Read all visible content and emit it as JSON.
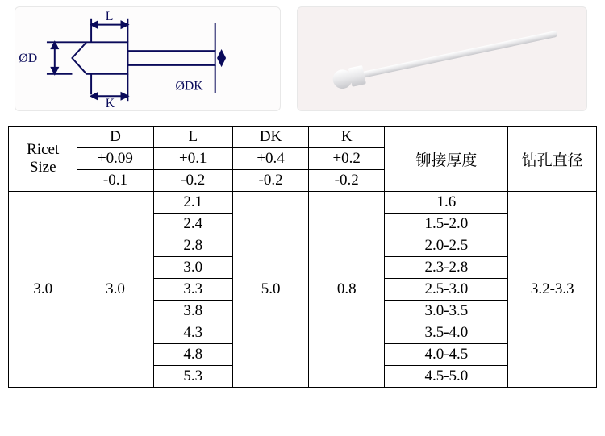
{
  "diagram": {
    "labels": {
      "L": "L",
      "D": "ØD",
      "DK": "ØDK",
      "K": "K"
    },
    "stroke": "#0a0a5a",
    "stroke_width": 2,
    "background": "#fdfcfc"
  },
  "photo": {
    "background": "#f6f1f1",
    "rivet_body": "#e8e8ea",
    "rivet_highlight": "#ffffff",
    "rivet_shadow": "#c8c8cc"
  },
  "table": {
    "header": {
      "size": "Ricet Size",
      "D": "D",
      "D_tol_hi": "+0.09",
      "D_tol_lo": "-0.1",
      "L": "L",
      "L_tol_hi": "+0.1",
      "L_tol_lo": "-0.2",
      "DK": "DK",
      "DK_tol_hi": "+0.4",
      "DK_tol_lo": "-0.2",
      "K": "K",
      "K_tol_hi": "+0.2",
      "K_tol_lo": "-0.2",
      "grip": "铆接厚度",
      "hole": "钻孔直径"
    },
    "group": {
      "size": "3.0",
      "D": "3.0",
      "DK": "5.0",
      "K": "0.8",
      "hole": "3.2-3.3",
      "rows": [
        {
          "L": "2.1",
          "grip": "1.6"
        },
        {
          "L": "2.4",
          "grip": "1.5-2.0"
        },
        {
          "L": "2.8",
          "grip": "2.0-2.5"
        },
        {
          "L": "3.0",
          "grip": "2.3-2.8"
        },
        {
          "L": "3.3",
          "grip": "2.5-3.0"
        },
        {
          "L": "3.8",
          "grip": "3.0-3.5"
        },
        {
          "L": "4.3",
          "grip": "3.5-4.0"
        },
        {
          "L": "4.8",
          "grip": "4.0-4.5"
        },
        {
          "L": "5.3",
          "grip": "4.5-5.0"
        }
      ]
    },
    "font_size": 19,
    "border_color": "#000000",
    "background": "#ffffff"
  }
}
